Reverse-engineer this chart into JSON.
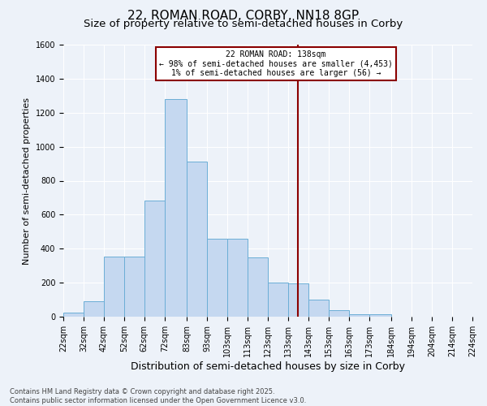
{
  "title1": "22, ROMAN ROAD, CORBY, NN18 8GP",
  "title2": "Size of property relative to semi-detached houses in Corby",
  "xlabel": "Distribution of semi-detached houses by size in Corby",
  "ylabel": "Number of semi-detached properties",
  "bin_labels": [
    "22sqm",
    "32sqm",
    "42sqm",
    "52sqm",
    "62sqm",
    "72sqm",
    "83sqm",
    "93sqm",
    "103sqm",
    "113sqm",
    "123sqm",
    "133sqm",
    "143sqm",
    "153sqm",
    "163sqm",
    "173sqm",
    "184sqm",
    "194sqm",
    "204sqm",
    "214sqm",
    "224sqm"
  ],
  "bin_edges": [
    22,
    32,
    42,
    52,
    62,
    72,
    83,
    93,
    103,
    113,
    123,
    133,
    143,
    153,
    163,
    173,
    184,
    194,
    204,
    214,
    224
  ],
  "bar_heights": [
    22,
    90,
    355,
    355,
    685,
    1280,
    910,
    460,
    460,
    350,
    200,
    195,
    100,
    40,
    15,
    15,
    0,
    0,
    0,
    0
  ],
  "bar_color": "#c5d8f0",
  "bar_edge_color": "#6baed6",
  "property_value": 138,
  "vline_color": "#8b0000",
  "annotation_text": "22 ROMAN ROAD: 138sqm\n← 98% of semi-detached houses are smaller (4,453)\n1% of semi-detached houses are larger (56) →",
  "annotation_box_color": "#ffffff",
  "annotation_box_edge": "#8b0000",
  "ylim": [
    0,
    1600
  ],
  "yticks": [
    0,
    200,
    400,
    600,
    800,
    1000,
    1200,
    1400,
    1600
  ],
  "bg_color": "#edf2f9",
  "footer1": "Contains HM Land Registry data © Crown copyright and database right 2025.",
  "footer2": "Contains public sector information licensed under the Open Government Licence v3.0.",
  "title1_fontsize": 11,
  "title2_fontsize": 9.5,
  "xlabel_fontsize": 9,
  "ylabel_fontsize": 8,
  "annot_fontsize": 7,
  "tick_fontsize": 7,
  "footer_fontsize": 6
}
